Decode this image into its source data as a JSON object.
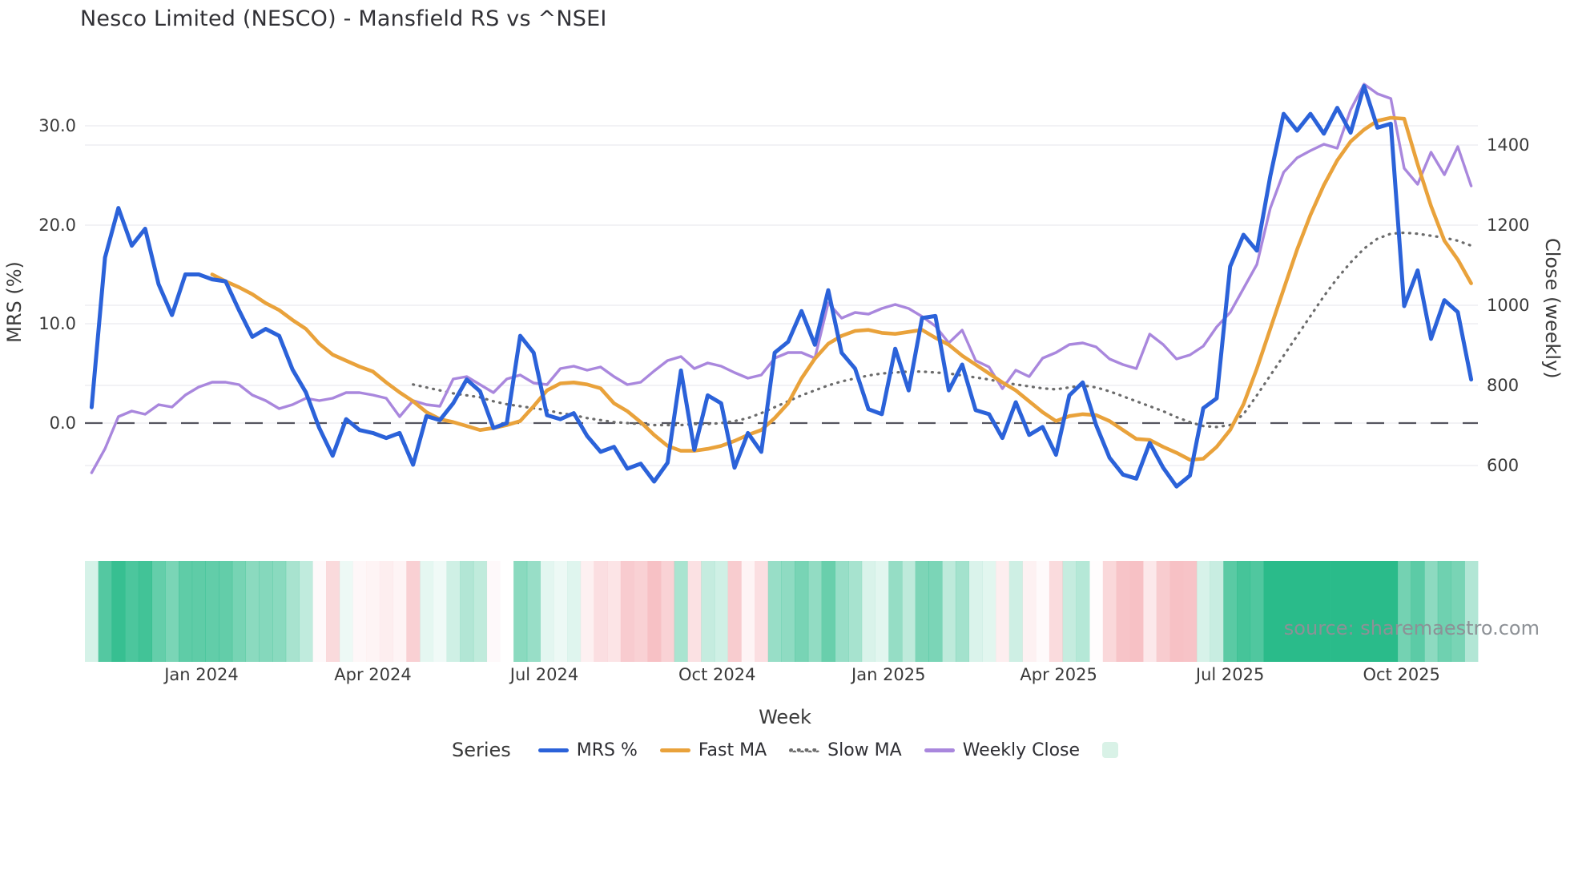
{
  "title": "Nesco Limited (NESCO) - Mansfield RS vs ^NSEI",
  "source": "source: sharemaestro.com",
  "axes": {
    "left": {
      "title": "MRS (%)",
      "tick_labels": [
        "0.0",
        "10.0",
        "20.0",
        "30.0"
      ],
      "tick_values": [
        0,
        10,
        20,
        30
      ]
    },
    "right": {
      "title": "Close (weekly)",
      "tick_labels": [
        "600",
        "800",
        "1000",
        "1200",
        "1400"
      ],
      "tick_values": [
        600,
        800,
        1000,
        1200,
        1400
      ]
    },
    "x": {
      "title": "Week",
      "ticks": [
        {
          "label": "Jan 2024",
          "week": 8.2
        },
        {
          "label": "Apr 2024",
          "week": 21.0
        },
        {
          "label": "Jul 2024",
          "week": 33.8
        },
        {
          "label": "Oct 2024",
          "week": 46.7
        },
        {
          "label": "Jan 2025",
          "week": 59.5
        },
        {
          "label": "Apr 2025",
          "week": 72.2
        },
        {
          "label": "Jul 2025",
          "week": 85.0
        },
        {
          "label": "Oct 2025",
          "week": 97.8
        }
      ]
    }
  },
  "legend": {
    "title": "Series",
    "items": [
      {
        "label": "MRS %",
        "color": "#2b62d9",
        "style": "solid"
      },
      {
        "label": "Fast MA",
        "color": "#e9a23b",
        "style": "solid"
      },
      {
        "label": "Slow MA",
        "color": "#6b6b6b",
        "style": "dotted"
      },
      {
        "label": "Weekly Close",
        "color": "#a987dd",
        "style": "solid"
      },
      {
        "label": "",
        "color": "#d9f2e7",
        "style": "square"
      }
    ]
  },
  "colors": {
    "mrs": "#2b62d9",
    "fast_ma": "#e9a23b",
    "slow_ma": "#6b6b6b",
    "weekly_close": "#a987dd",
    "zero_line": "#55555f",
    "gridline": "#ededf2",
    "heat_positive": "rgb(42,187,138)",
    "heat_negative": "rgb(247,193,197)"
  },
  "chart_data": {
    "type": "line",
    "title": "Nesco Limited (NESCO) - Mansfield RS vs ^NSEI",
    "xlabel": "Week",
    "ylabel_left": "MRS (%)",
    "ylabel_right": "Close (weekly)",
    "n_weeks": 104,
    "ylim_left": [
      -11.5,
      35.6
    ],
    "ylim_right": [
      442,
      1582
    ],
    "grid": true,
    "legend_position": "bottom",
    "series": [
      {
        "name": "MRS %",
        "axis": "left",
        "style": "solid",
        "color": "#2b62d9",
        "values": [
          1.6,
          16.7,
          21.7,
          17.9,
          19.6,
          14.0,
          10.9,
          15.0,
          15.0,
          14.5,
          14.3,
          11.4,
          8.7,
          9.5,
          8.8,
          5.4,
          3.1,
          -0.5,
          -3.3,
          0.4,
          -0.7,
          -1.0,
          -1.5,
          -1.0,
          -4.2,
          0.7,
          0.3,
          2.0,
          4.4,
          3.2,
          -0.5,
          0.0,
          8.8,
          7.1,
          0.8,
          0.4,
          1.0,
          -1.3,
          -2.9,
          -2.4,
          -4.6,
          -4.1,
          -5.9,
          -4.0,
          5.3,
          -2.7,
          2.8,
          2.0,
          -4.5,
          -1.0,
          -2.9,
          7.1,
          8.2,
          11.3,
          7.9,
          13.4,
          7.1,
          5.5,
          1.4,
          0.9,
          7.5,
          3.3,
          10.6,
          10.8,
          3.3,
          5.9,
          1.3,
          0.9,
          -1.5,
          2.1,
          -1.2,
          -0.4,
          -3.2,
          2.8,
          4.1,
          -0.2,
          -3.5,
          -5.2,
          -5.6,
          -2.0,
          -4.5,
          -6.4,
          -5.3,
          1.5,
          2.5,
          15.8,
          19.0,
          17.4,
          24.9,
          31.2,
          29.5,
          31.2,
          29.2,
          31.8,
          29.3,
          34.0,
          29.8,
          30.2,
          11.8,
          15.4,
          8.5,
          12.4,
          11.2,
          4.4
        ]
      },
      {
        "name": "Fast MA",
        "axis": "left",
        "style": "solid",
        "color": "#e9a23b",
        "values": [
          null,
          null,
          null,
          null,
          null,
          null,
          null,
          null,
          null,
          15.0,
          14.3,
          13.7,
          13.0,
          12.1,
          11.4,
          10.4,
          9.5,
          8.0,
          6.9,
          6.3,
          5.7,
          5.2,
          4.1,
          3.1,
          2.2,
          1.1,
          0.4,
          0.1,
          -0.3,
          -0.7,
          -0.5,
          -0.2,
          0.2,
          1.7,
          3.3,
          4.0,
          4.1,
          3.9,
          3.5,
          2.0,
          1.2,
          0.1,
          -1.2,
          -2.3,
          -2.8,
          -2.8,
          -2.6,
          -2.3,
          -1.8,
          -1.2,
          -0.7,
          0.5,
          2.0,
          4.5,
          6.5,
          8.0,
          8.8,
          9.3,
          9.4,
          9.1,
          9.0,
          9.2,
          9.4,
          8.6,
          7.9,
          6.8,
          5.9,
          5.0,
          4.1,
          3.3,
          2.2,
          1.1,
          0.2,
          0.7,
          0.9,
          0.8,
          0.2,
          -0.7,
          -1.6,
          -1.7,
          -2.4,
          -3.0,
          -3.7,
          -3.6,
          -2.4,
          -0.7,
          1.9,
          5.5,
          9.5,
          13.5,
          17.5,
          21.0,
          24.0,
          26.5,
          28.4,
          29.6,
          30.5,
          30.8,
          30.7,
          26.1,
          21.9,
          18.4,
          16.5,
          14.1
        ]
      },
      {
        "name": "Slow MA",
        "axis": "left",
        "style": "dotted",
        "color": "#6b6b6b",
        "values": [
          null,
          null,
          null,
          null,
          null,
          null,
          null,
          null,
          null,
          null,
          null,
          null,
          null,
          null,
          null,
          null,
          null,
          null,
          null,
          null,
          null,
          null,
          null,
          null,
          3.9,
          3.6,
          3.3,
          3.0,
          2.8,
          2.6,
          2.2,
          1.9,
          1.7,
          1.5,
          1.3,
          1.0,
          0.8,
          0.5,
          0.3,
          0.1,
          0.0,
          -0.1,
          -0.2,
          -0.2,
          -0.2,
          -0.1,
          -0.1,
          0.0,
          0.2,
          0.5,
          1.0,
          1.6,
          2.2,
          2.8,
          3.3,
          3.8,
          4.2,
          4.5,
          4.8,
          5.0,
          5.1,
          5.2,
          5.2,
          5.1,
          5.0,
          4.8,
          4.6,
          4.4,
          4.1,
          3.9,
          3.7,
          3.5,
          3.4,
          3.6,
          3.8,
          3.6,
          3.2,
          2.7,
          2.2,
          1.7,
          1.2,
          0.6,
          0.1,
          -0.3,
          -0.4,
          -0.2,
          0.9,
          2.8,
          4.8,
          6.8,
          8.8,
          10.8,
          12.8,
          14.6,
          16.2,
          17.6,
          18.6,
          19.1,
          19.2,
          19.1,
          18.9,
          18.7,
          18.4,
          17.9
        ]
      },
      {
        "name": "Weekly Close",
        "axis": "right",
        "style": "solid",
        "color": "#a987dd",
        "values": [
          582,
          642,
          722,
          736,
          728,
          752,
          746,
          776,
          796,
          808,
          808,
          802,
          776,
          762,
          742,
          752,
          768,
          762,
          768,
          782,
          782,
          776,
          768,
          722,
          762,
          752,
          748,
          816,
          822,
          802,
          782,
          816,
          826,
          806,
          802,
          842,
          848,
          838,
          846,
          822,
          802,
          808,
          836,
          862,
          872,
          842,
          856,
          848,
          832,
          818,
          826,
          868,
          882,
          882,
          868,
          1006,
          968,
          982,
          978,
          992,
          1002,
          992,
          972,
          948,
          906,
          938,
          862,
          846,
          792,
          838,
          822,
          868,
          882,
          902,
          906,
          896,
          866,
          852,
          842,
          928,
          902,
          866,
          876,
          898,
          946,
          982,
          1042,
          1102,
          1242,
          1332,
          1368,
          1386,
          1402,
          1392,
          1488,
          1552,
          1528,
          1516,
          1342,
          1302,
          1382,
          1326,
          1396,
          1298
        ]
      }
    ],
    "heatmap": {
      "description": "weekly color strip under chart derived from MRS % values",
      "source_series": "MRS %",
      "positive_color": "rgb(42,187,138)",
      "negative_color": "rgb(247,193,197)"
    }
  }
}
